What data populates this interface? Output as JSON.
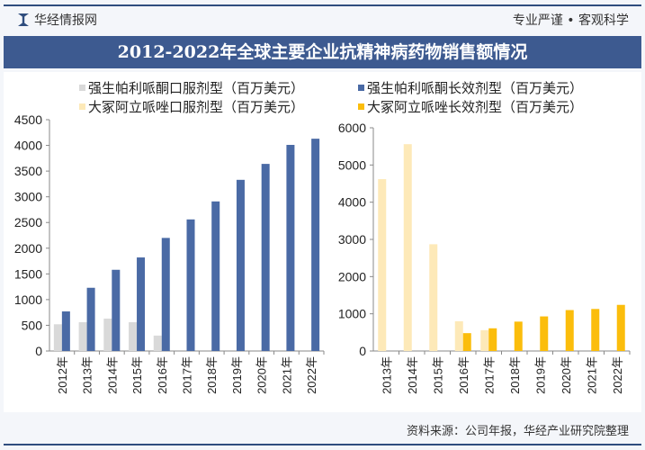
{
  "header": {
    "brand": "华经情报网",
    "slogan": "专业严谨 • 客观科学",
    "title": "2012-2022年全球主要企业抗精神病药物销售额情况"
  },
  "legend": [
    {
      "label": "强生帕利哌酮口服剂型（百万美元）",
      "color": "#d9d9d9"
    },
    {
      "label": "强生帕利哌酮长效剂型（百万美元）",
      "color": "#4a6aa5"
    },
    {
      "label": "大冢阿立哌唑口服剂型（百万美元）",
      "color": "#fde9b8"
    },
    {
      "label": "大冢阿立哌唑长效剂型（百万美元）",
      "color": "#fbbd0c"
    }
  ],
  "footer": {
    "source": "资料来源：公司年报，华经产业研究院整理"
  },
  "chart_data": [
    {
      "type": "bar",
      "categories": [
        "2012年",
        "2013年",
        "2014年",
        "2015年",
        "2016年",
        "2017年",
        "2018年",
        "2019年",
        "2020年",
        "2021年",
        "2022年"
      ],
      "ylim": [
        0,
        4500
      ],
      "yticks": [
        0,
        500,
        1000,
        1500,
        2000,
        2500,
        3000,
        3500,
        4000,
        4500
      ],
      "series": [
        {
          "name": "强生帕利哌酮口服剂型（百万美元）",
          "color": "#d9d9d9",
          "values": [
            520,
            560,
            630,
            560,
            300,
            0,
            0,
            0,
            0,
            0,
            0
          ]
        },
        {
          "name": "强生帕利哌酮长效剂型（百万美元）",
          "color": "#4a6aa5",
          "values": [
            770,
            1230,
            1580,
            1820,
            2200,
            2560,
            2910,
            3330,
            3640,
            4010,
            4130
          ]
        }
      ]
    },
    {
      "type": "bar",
      "categories": [
        "2013年",
        "2014年",
        "2015年",
        "2016年",
        "2017年",
        "2018年",
        "2019年",
        "2020年",
        "2021年",
        "2022年"
      ],
      "ylim": [
        0,
        6000
      ],
      "yticks": [
        0,
        1000,
        2000,
        3000,
        4000,
        5000,
        6000
      ],
      "series": [
        {
          "name": "大冢阿立哌唑口服剂型（百万美元）",
          "color": "#fde9b8",
          "values": [
            4620,
            5560,
            2870,
            800,
            560,
            0,
            0,
            0,
            0,
            0
          ]
        },
        {
          "name": "大冢阿立哌唑长效剂型（百万美元）",
          "color": "#fbbd0c",
          "values": [
            0,
            0,
            0,
            480,
            610,
            790,
            930,
            1100,
            1130,
            1240
          ]
        }
      ]
    }
  ]
}
